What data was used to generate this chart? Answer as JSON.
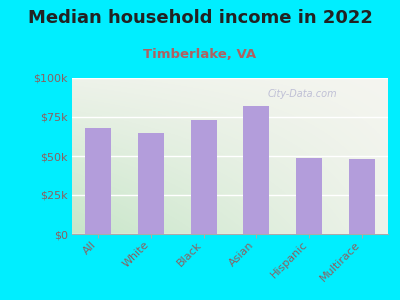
{
  "title": "Median household income in 2022",
  "subtitle": "Timberlake, VA",
  "categories": [
    "All",
    "White",
    "Black",
    "Asian",
    "Hispanic",
    "Multirace"
  ],
  "values": [
    68000,
    65000,
    73000,
    82000,
    49000,
    48000
  ],
  "bar_color": "#b39ddb",
  "background_outer": "#00eeff",
  "background_inner_left": "#d4edda",
  "background_inner_right": "#f0f4f0",
  "title_color": "#222222",
  "subtitle_color": "#b06060",
  "ytick_color": "#8b6060",
  "xtick_color": "#8b6060",
  "watermark_text": "City-Data.com",
  "ylim": [
    0,
    100000
  ],
  "yticks": [
    0,
    25000,
    50000,
    75000,
    100000
  ],
  "ytick_labels": [
    "$0",
    "$25k",
    "$50k",
    "$75k",
    "$100k"
  ],
  "title_fontsize": 13,
  "subtitle_fontsize": 9.5,
  "tick_fontsize": 8
}
